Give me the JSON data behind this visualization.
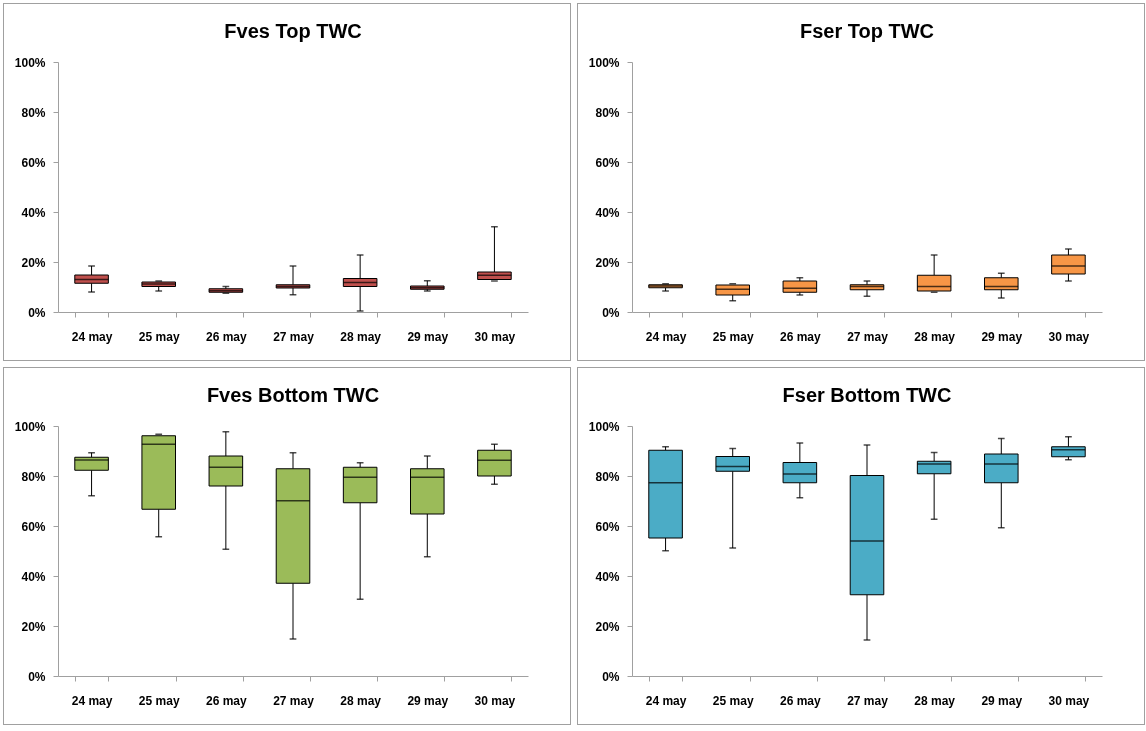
{
  "chart_data": [
    {
      "type": "box",
      "title": "Fves Top TWC",
      "categories": [
        "24 may",
        "25 may",
        "26 may",
        "27 may",
        "28 may",
        "29 may",
        "30 may"
      ],
      "color": "#c0504d",
      "ylim": [
        0,
        100
      ],
      "yticks": [
        {
          "value": 0,
          "label": "0%"
        },
        {
          "value": 20,
          "label": "20%"
        },
        {
          "value": 40,
          "label": "40%"
        },
        {
          "value": 60,
          "label": "60%"
        },
        {
          "value": 80,
          "label": "80%"
        },
        {
          "value": 100,
          "label": "100%"
        }
      ],
      "boxes": [
        {
          "low": 8,
          "q1": 11.5,
          "median": 13,
          "q3": 14.8,
          "high": 18.4
        },
        {
          "low": 8.4,
          "q1": 10.2,
          "median": 11.2,
          "q3": 12,
          "high": 12.4
        },
        {
          "low": 7.5,
          "q1": 7.9,
          "median": 8.5,
          "q3": 9.3,
          "high": 10.2
        },
        {
          "low": 6.9,
          "q1": 9.6,
          "median": 10.2,
          "q3": 10.9,
          "high": 18.4
        },
        {
          "low": 0.4,
          "q1": 10.2,
          "median": 11.8,
          "q3": 13.4,
          "high": 22.8
        },
        {
          "low": 8.4,
          "q1": 9.1,
          "median": 9.7,
          "q3": 10.4,
          "high": 12.5
        },
        {
          "low": 12.4,
          "q1": 13,
          "median": 14.7,
          "q3": 16,
          "high": 34.1
        }
      ]
    },
    {
      "type": "box",
      "title": "Fser Top TWC",
      "categories": [
        "24 may",
        "25 may",
        "26 may",
        "27 may",
        "28 may",
        "29 may",
        "30 may"
      ],
      "color": "#f79646",
      "ylim": [
        0,
        100
      ],
      "yticks": [
        {
          "value": 0,
          "label": "0%"
        },
        {
          "value": 20,
          "label": "20%"
        },
        {
          "value": 40,
          "label": "40%"
        },
        {
          "value": 60,
          "label": "60%"
        },
        {
          "value": 80,
          "label": "80%"
        },
        {
          "value": 100,
          "label": "100%"
        }
      ],
      "boxes": [
        {
          "low": 8.4,
          "q1": 9.7,
          "median": 10.4,
          "q3": 10.9,
          "high": 11.3
        },
        {
          "low": 4.5,
          "q1": 6.8,
          "median": 9.1,
          "q3": 10.8,
          "high": 11.3
        },
        {
          "low": 6.8,
          "q1": 7.9,
          "median": 9.5,
          "q3": 12.4,
          "high": 13.7
        },
        {
          "low": 6.3,
          "q1": 8.9,
          "median": 10.2,
          "q3": 10.9,
          "high": 12.4
        },
        {
          "low": 7.9,
          "q1": 8.4,
          "median": 10.2,
          "q3": 14.7,
          "high": 22.8
        },
        {
          "low": 5.6,
          "q1": 8.9,
          "median": 10.2,
          "q3": 13.7,
          "high": 15.5
        },
        {
          "low": 12.4,
          "q1": 15.2,
          "median": 18.4,
          "q3": 22.8,
          "high": 25.2
        }
      ]
    },
    {
      "type": "box",
      "title": "Fves Bottom TWC",
      "categories": [
        "24 may",
        "25 may",
        "26 may",
        "27 may",
        "28 may",
        "29 may",
        "30 may"
      ],
      "color": "#9bbb59",
      "ylim": [
        0,
        100
      ],
      "yticks": [
        {
          "value": 0,
          "label": "0%"
        },
        {
          "value": 20,
          "label": "20%"
        },
        {
          "value": 40,
          "label": "40%"
        },
        {
          "value": 60,
          "label": "60%"
        },
        {
          "value": 80,
          "label": "80%"
        },
        {
          "value": 100,
          "label": "100%"
        }
      ],
      "boxes": [
        {
          "low": 72.1,
          "q1": 82.3,
          "median": 86.4,
          "q3": 87.5,
          "high": 89.3
        },
        {
          "low": 55.7,
          "q1": 66.7,
          "median": 92.7,
          "q3": 96.1,
          "high": 96.7
        },
        {
          "low": 50.7,
          "q1": 76,
          "median": 83.5,
          "q3": 88,
          "high": 97.7
        },
        {
          "low": 14.8,
          "q1": 37.1,
          "median": 70.1,
          "q3": 82.9,
          "high": 89.3
        },
        {
          "low": 30.7,
          "q1": 69.3,
          "median": 79.5,
          "q3": 83.5,
          "high": 85.3
        },
        {
          "low": 47.7,
          "q1": 64.8,
          "median": 79.5,
          "q3": 82.9,
          "high": 88
        },
        {
          "low": 76.7,
          "q1": 80,
          "median": 86.3,
          "q3": 90.3,
          "high": 92.7
        }
      ]
    },
    {
      "type": "box",
      "title": "Fser Bottom TWC",
      "categories": [
        "24 may",
        "25 may",
        "26 may",
        "27 may",
        "28 may",
        "29 may",
        "30 may"
      ],
      "color": "#4bacc6",
      "ylim": [
        0,
        100
      ],
      "yticks": [
        {
          "value": 0,
          "label": "0%"
        },
        {
          "value": 20,
          "label": "20%"
        },
        {
          "value": 40,
          "label": "40%"
        },
        {
          "value": 60,
          "label": "60%"
        },
        {
          "value": 80,
          "label": "80%"
        },
        {
          "value": 100,
          "label": "100%"
        }
      ],
      "boxes": [
        {
          "low": 50.1,
          "q1": 55.2,
          "median": 77.3,
          "q3": 90.3,
          "high": 91.7
        },
        {
          "low": 51.2,
          "q1": 81.9,
          "median": 83.8,
          "q3": 87.8,
          "high": 91
        },
        {
          "low": 71.3,
          "q1": 77.3,
          "median": 80.8,
          "q3": 85.4,
          "high": 93.2
        },
        {
          "low": 14.4,
          "q1": 32.5,
          "median": 54,
          "q3": 80.2,
          "high": 92.4
        },
        {
          "low": 62.7,
          "q1": 80.9,
          "median": 84.8,
          "q3": 85.9,
          "high": 89.4
        },
        {
          "low": 59.3,
          "q1": 77.3,
          "median": 84.8,
          "q3": 88.8,
          "high": 95
        },
        {
          "low": 86.5,
          "q1": 87.7,
          "median": 90.5,
          "q3": 91.7,
          "high": 95.7
        }
      ]
    }
  ]
}
